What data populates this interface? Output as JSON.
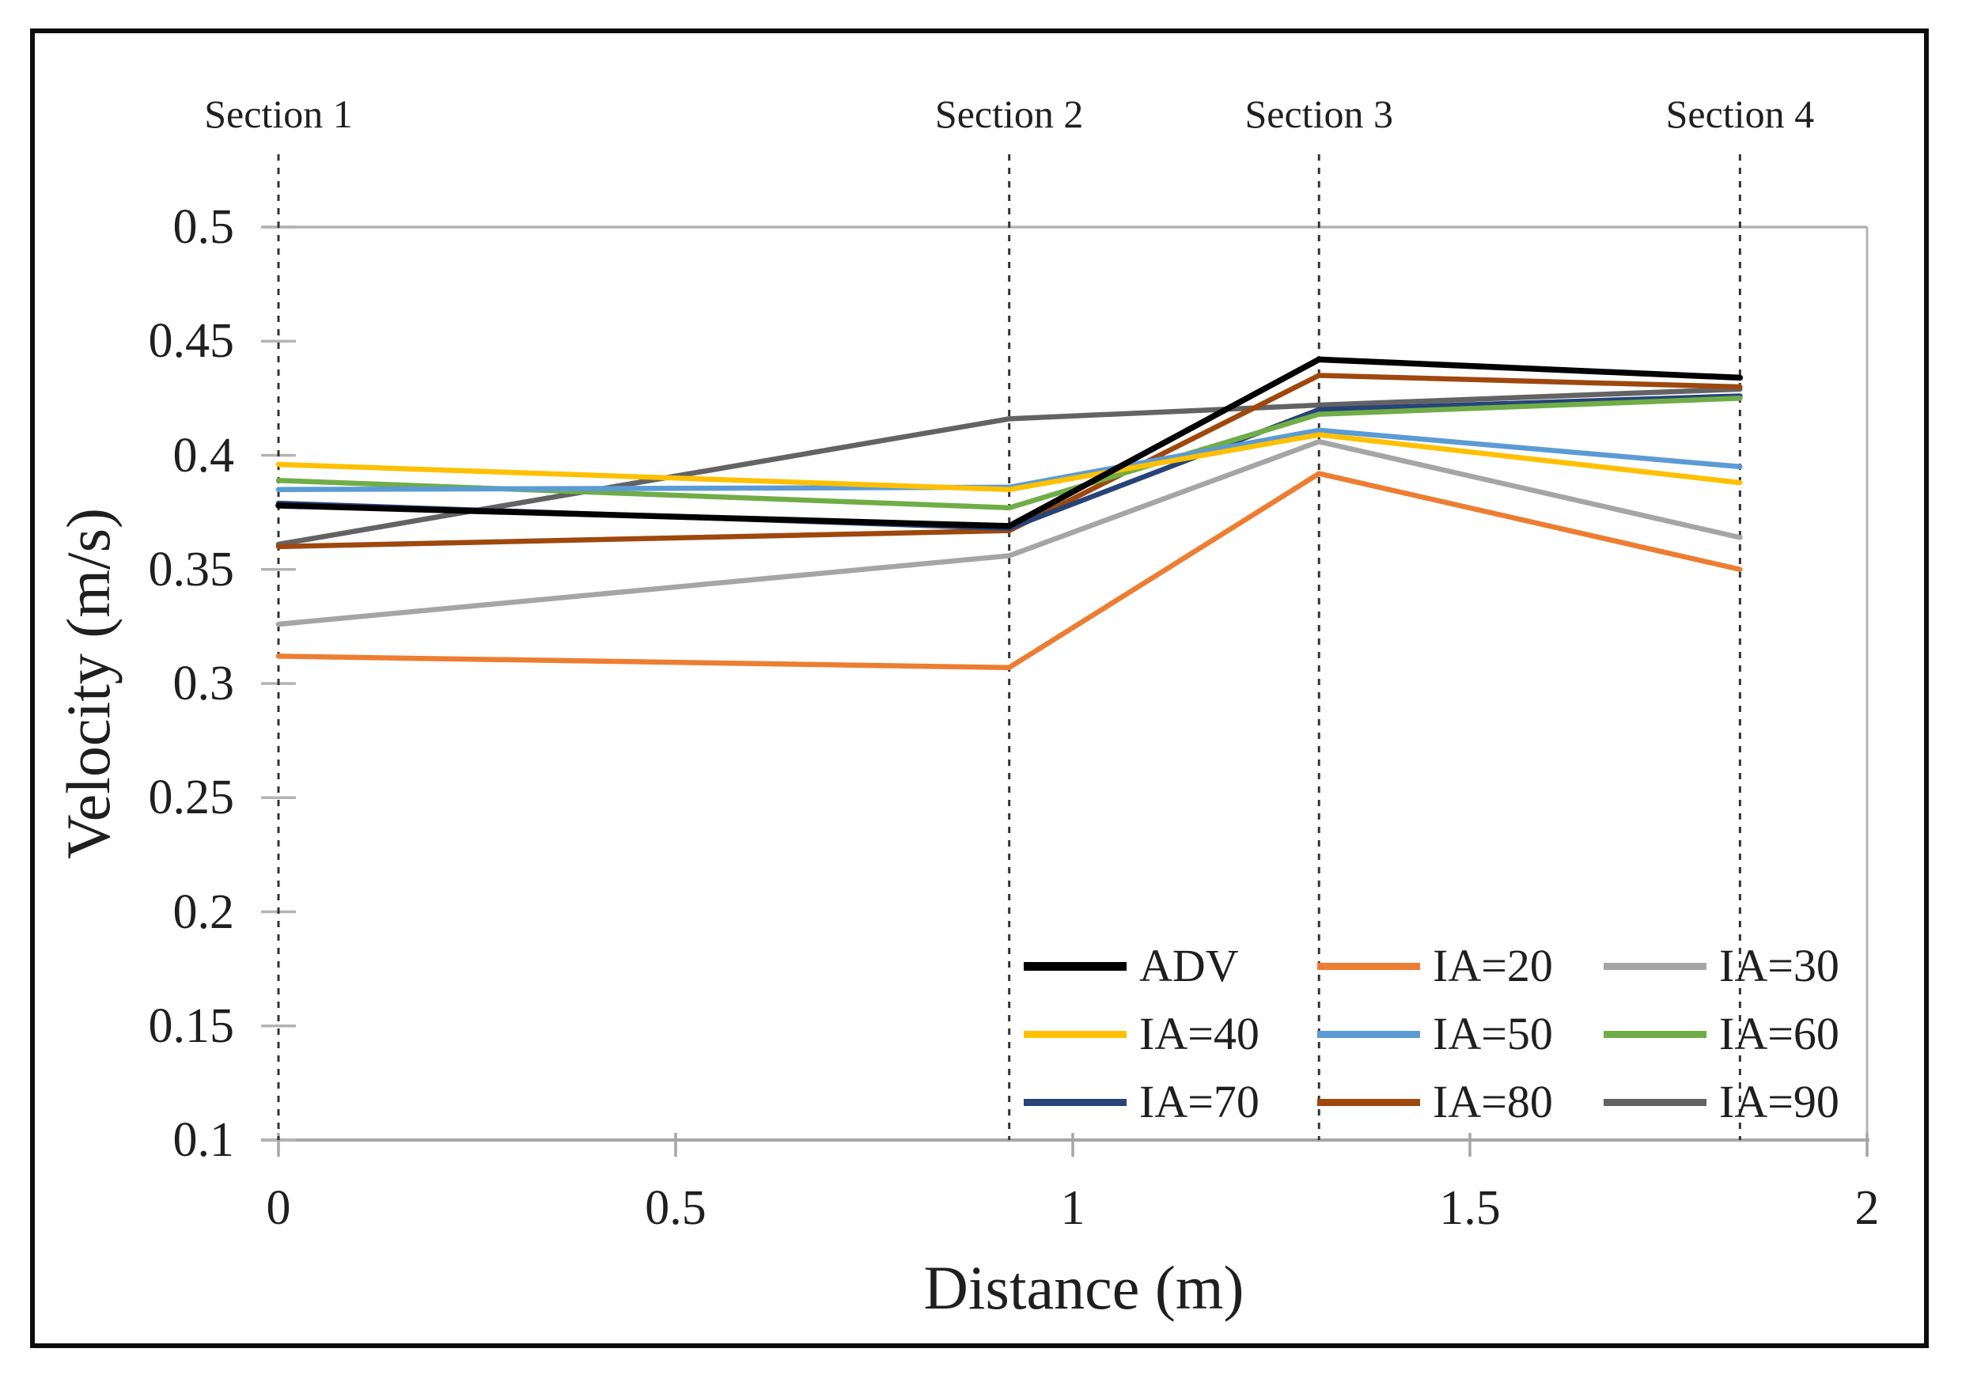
{
  "chart_data": {
    "type": "line",
    "title": "",
    "xlabel": "Distance (m)",
    "ylabel": "Velocity (m/s)",
    "xlim": [
      0,
      2
    ],
    "ylim": [
      0.1,
      0.5
    ],
    "x_tick_labels": [
      "0",
      "0.5",
      "1",
      "1.5",
      "2"
    ],
    "x_tick_values": [
      0,
      0.5,
      1,
      1.5,
      2
    ],
    "y_tick_labels": [
      "0.5",
      "0.45",
      "0.4",
      "0.35",
      "0.3",
      "0.25",
      "0.2",
      "0.15",
      "0.1"
    ],
    "y_tick_values": [
      0.5,
      0.45,
      0.4,
      0.35,
      0.3,
      0.25,
      0.2,
      0.15,
      0.1
    ],
    "sections": [
      {
        "label": "Section 1",
        "x": 0
      },
      {
        "label": "Section 2",
        "x": 0.92
      },
      {
        "label": "Section 3",
        "x": 1.31
      },
      {
        "label": "Section 4",
        "x": 1.84
      }
    ],
    "x": [
      0,
      0.92,
      1.31,
      1.84
    ],
    "series": [
      {
        "name": "ADV",
        "color": "#000000",
        "values": [
          0.378,
          0.369,
          0.442,
          0.434
        ]
      },
      {
        "name": "IA=20",
        "color": "#ED7D31",
        "values": [
          0.312,
          0.307,
          0.392,
          0.35
        ]
      },
      {
        "name": "IA=30",
        "color": "#A5A5A5",
        "values": [
          0.326,
          0.356,
          0.406,
          0.364
        ]
      },
      {
        "name": "IA=40",
        "color": "#FFC000",
        "values": [
          0.396,
          0.385,
          0.409,
          0.388
        ]
      },
      {
        "name": "IA=50",
        "color": "#5B9BD5",
        "values": [
          0.385,
          0.386,
          0.411,
          0.395
        ]
      },
      {
        "name": "IA=60",
        "color": "#70AD47",
        "values": [
          0.389,
          0.377,
          0.418,
          0.425
        ]
      },
      {
        "name": "IA=70",
        "color": "#264478",
        "values": [
          0.379,
          0.368,
          0.42,
          0.426
        ]
      },
      {
        "name": "IA=80",
        "color": "#9E480E",
        "values": [
          0.36,
          0.367,
          0.435,
          0.43
        ]
      },
      {
        "name": "IA=90",
        "color": "#636363",
        "values": [
          0.361,
          0.416,
          0.422,
          0.429
        ]
      }
    ],
    "legend_position": "inside-bottom-right",
    "grid": {
      "top_gridline_at": 0.5,
      "other_gridlines": false
    }
  },
  "styles": {
    "axis_color": "#A6A6A6",
    "tick_color": "#B3B3B3",
    "section_line_color": "#333333",
    "text_color": "#1f1f1f",
    "frame_border_color": "#0d0d0d"
  }
}
